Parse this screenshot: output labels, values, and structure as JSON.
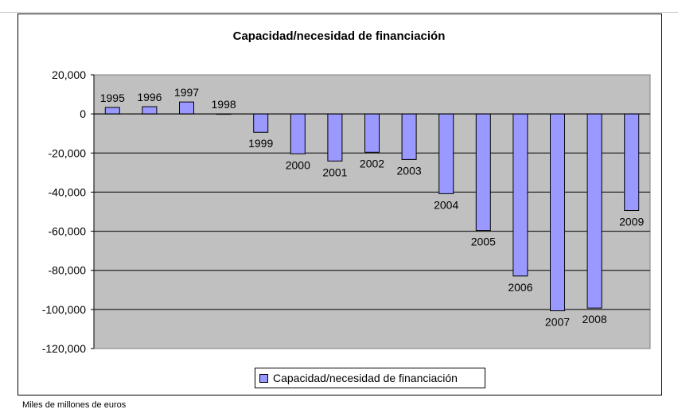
{
  "chart_data": {
    "type": "bar",
    "title": "Capacidad/necesidad de financiación",
    "xlabel": "",
    "ylabel": "",
    "categories": [
      "1995",
      "1996",
      "1997",
      "1998",
      "1999",
      "2000",
      "2001",
      "2002",
      "2003",
      "2004",
      "2005",
      "2006",
      "2007",
      "2008",
      "2009"
    ],
    "series": [
      {
        "name": "Capacidad/necesidad de financiación",
        "values": [
          3300,
          3700,
          6100,
          0,
          -9400,
          -20400,
          -24100,
          -19600,
          -23300,
          -40800,
          -59600,
          -82900,
          -100700,
          -99300,
          -49400
        ]
      }
    ],
    "ylim": [
      -120000,
      20000
    ],
    "yticks": [
      "20,000",
      "0",
      "-20,000",
      "-40,000",
      "-60,000",
      "-80,000",
      "-100,000",
      "-120,000"
    ],
    "grid": true,
    "legend_position": "bottom",
    "colors": {
      "bar": "#9999ff",
      "plot_bg": "#c0c0c0"
    }
  },
  "footnote": "Miles de millones de euros"
}
